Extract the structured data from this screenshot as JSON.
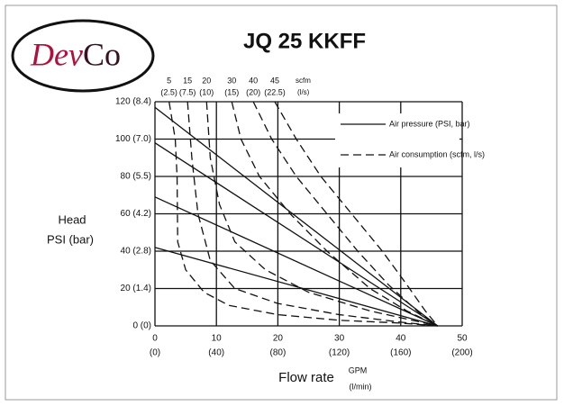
{
  "logo": {
    "left": "Dev",
    "right": "Co"
  },
  "chart_data": {
    "type": "line",
    "title": "JQ 25 KKFF",
    "y_label": [
      "Head",
      "PSI (bar)"
    ],
    "x_label": "Flow rate",
    "x_unit": "GPM",
    "x2_unit": "(l/min)",
    "top_unit": "scfm",
    "top2_unit": "(l/s)",
    "xlim": [
      0,
      50
    ],
    "ylim": [
      0,
      120
    ],
    "xticks": [
      0,
      10,
      20,
      30,
      40,
      50
    ],
    "x2ticks": [
      {
        "value": 0,
        "label": "(0)"
      },
      {
        "value": 10,
        "label": "(40)"
      },
      {
        "value": 20,
        "label": "(80)"
      },
      {
        "value": 30,
        "label": "(120)"
      },
      {
        "value": 40,
        "label": "(160)"
      },
      {
        "value": 50,
        "label": "(200)"
      }
    ],
    "yticks": [
      {
        "value": 0,
        "label": "0 (0)"
      },
      {
        "value": 20,
        "label": "20 (1.4)"
      },
      {
        "value": 40,
        "label": "40 (2.8)"
      },
      {
        "value": 60,
        "label": "60 (4.2)"
      },
      {
        "value": 80,
        "label": "80 (5.5)"
      },
      {
        "value": 100,
        "label": "100 (7.0)"
      },
      {
        "value": 120,
        "label": "120 (8.4)"
      }
    ],
    "grid": true,
    "legend": [
      {
        "label": "Air pressure (PSI, bar)",
        "dashed": false
      },
      {
        "label": "Air consumption (scfm, l/s)",
        "dashed": true
      }
    ],
    "color": "#111111",
    "series": [
      {
        "dashed": false,
        "x": [
          0,
          46
        ],
        "values": [
          117,
          0
        ]
      },
      {
        "dashed": false,
        "x": [
          0,
          46
        ],
        "values": [
          98,
          0
        ]
      },
      {
        "dashed": false,
        "x": [
          0,
          46
        ],
        "values": [
          69,
          0
        ]
      },
      {
        "dashed": false,
        "x": [
          0,
          46
        ],
        "values": [
          42,
          0
        ]
      },
      {
        "name": "5",
        "sublabel": "(2.5)",
        "dashed": true,
        "x": [
          2.3,
          3.3,
          3.6,
          3.7,
          5,
          8,
          12,
          20,
          30,
          40,
          46
        ],
        "values": [
          120,
          100,
          80,
          45,
          30,
          18,
          11,
          6,
          3,
          1.5,
          0
        ]
      },
      {
        "name": "15",
        "sublabel": "(7.5)",
        "dashed": true,
        "x": [
          5.3,
          6,
          7,
          9,
          13,
          20,
          30,
          40,
          46
        ],
        "values": [
          120,
          90,
          60,
          35,
          20,
          12,
          6,
          2,
          0
        ]
      },
      {
        "name": "20",
        "sublabel": "(10)",
        "dashed": true,
        "x": [
          8.4,
          9,
          10.5,
          13,
          18,
          25,
          35,
          46
        ],
        "values": [
          120,
          90,
          65,
          45,
          30,
          18,
          8,
          0
        ]
      },
      {
        "name": "30",
        "sublabel": "(15)",
        "dashed": true,
        "x": [
          12.5,
          14,
          17,
          22,
          28,
          35,
          41,
          46
        ],
        "values": [
          120,
          100,
          80,
          60,
          40,
          20,
          8,
          0
        ]
      },
      {
        "name": "40",
        "sublabel": "(20)",
        "dashed": true,
        "x": [
          16,
          19,
          23,
          28,
          33,
          38,
          43,
          46
        ],
        "values": [
          120,
          100,
          80,
          60,
          40,
          22,
          7,
          0
        ]
      },
      {
        "name": "45",
        "sublabel": "(22.5)",
        "dashed": true,
        "x": [
          19.5,
          23,
          27,
          32,
          37,
          41,
          44,
          46
        ],
        "values": [
          120,
          100,
          80,
          60,
          40,
          22,
          8,
          0
        ]
      }
    ]
  }
}
